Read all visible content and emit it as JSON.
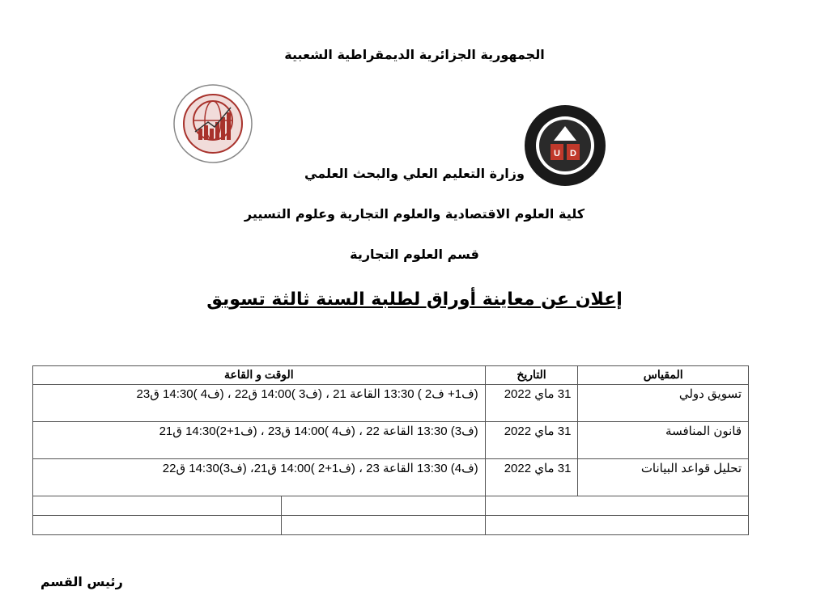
{
  "header": {
    "republic": "الجمهورية الجزائرية الديمقراطية الشعبية",
    "ministry": "وزارة التعليم العلي والبحث العلمي",
    "faculty": "كلية العلوم الاقتصادية والعلوم التجارية وعلوم التسيير",
    "department": "قسم العلوم التجارية",
    "announcement": "إعلان عن معاينة أوراق لطلبة السنة ثالثة تسويق"
  },
  "logos": {
    "faculty_logo": "Faculty of Economic Sciences, Commerce and Management - University of Djelfa",
    "university_logo": "Université de Djelfa - UD"
  },
  "table": {
    "headers": {
      "subject": "المقياس",
      "date": "التاريخ",
      "time_room": "الوقت و القاعة"
    },
    "rows": [
      {
        "subject": "تسويق دولي",
        "date": "31 ماي 2022",
        "schedule": "(ف1+ ف2 ) 13:30 القاعة 21 ، (ف3 )14:00 ق22 ، (ف4 )14:30 ق23"
      },
      {
        "subject": "قانون المنافسة",
        "date": "31 ماي 2022",
        "schedule": "(ف3) 13:30 القاعة 22 ، (ف4 )14:00 ق23 ، (ف1+2)14:30 ق21"
      },
      {
        "subject": "تحليل قواعد البيانات",
        "date": "31 ماي 2022",
        "schedule": "(ف4) 13:30 القاعة 23 ، (ف1+2 )14:00 ق21، (ف3)14:30 ق22"
      }
    ]
  },
  "footer": {
    "signature_label": "رئيس القسم"
  },
  "colors": {
    "faculty_logo_red": "#a8322c",
    "university_logo_dark": "#1a1a1a"
  }
}
